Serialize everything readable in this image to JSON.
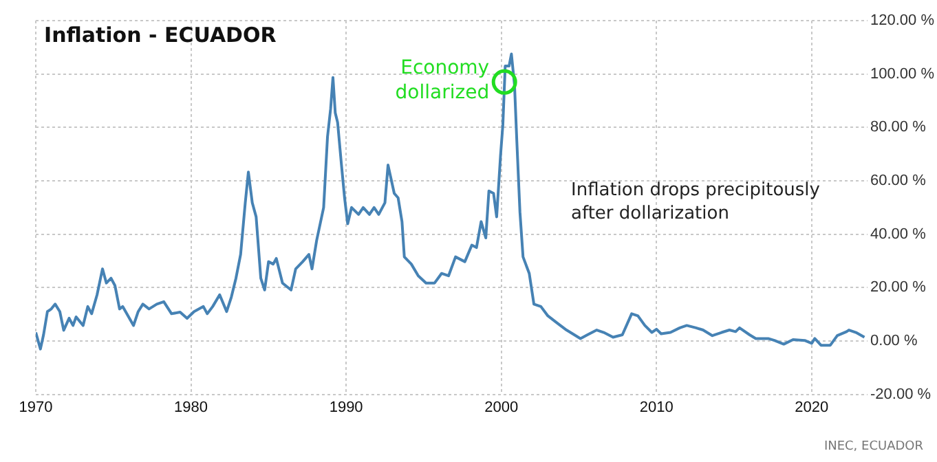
{
  "chart_data": {
    "type": "line",
    "title": "Inflation - ECUADOR",
    "x": [
      1970.0,
      1970.3,
      1970.5,
      1970.75,
      1971.0,
      1971.25,
      1971.55,
      1971.8,
      1972.15,
      1972.4,
      1972.6,
      1973.05,
      1973.35,
      1973.6,
      1973.95,
      1974.3,
      1974.55,
      1974.85,
      1975.1,
      1975.4,
      1975.6,
      1976.3,
      1976.6,
      1976.9,
      1977.3,
      1977.8,
      1978.25,
      1978.75,
      1979.3,
      1979.75,
      1980.2,
      1980.8,
      1981.05,
      1981.4,
      1981.85,
      1982.3,
      1982.6,
      1982.9,
      1983.2,
      1983.5,
      1983.7,
      1983.95,
      1984.2,
      1984.5,
      1984.75,
      1985.0,
      1985.3,
      1985.5,
      1985.9,
      1986.45,
      1986.75,
      1987.2,
      1987.6,
      1987.8,
      1988.1,
      1988.55,
      1988.8,
      1989.0,
      1989.15,
      1989.3,
      1989.45,
      1989.7,
      1989.9,
      1990.1,
      1990.35,
      1990.8,
      1991.1,
      1991.5,
      1991.8,
      1992.1,
      1992.5,
      1992.7,
      1993.1,
      1993.35,
      1993.6,
      1993.75,
      1994.2,
      1994.65,
      1995.15,
      1995.7,
      1996.15,
      1996.6,
      1997.05,
      1997.65,
      1998.1,
      1998.4,
      1998.7,
      1999.0,
      1999.2,
      1999.5,
      1999.7,
      1999.95,
      2000.1,
      2000.25,
      2000.5,
      2000.65,
      2000.85,
      2001.0,
      2001.2,
      2001.4,
      2001.8,
      2002.1,
      2002.55,
      2003.0,
      2003.6,
      2004.2,
      2005.1,
      2005.55,
      2006.15,
      2006.6,
      2007.2,
      2007.8,
      2008.4,
      2008.8,
      2009.25,
      2009.7,
      2010.0,
      2010.3,
      2010.9,
      2011.5,
      2011.95,
      2012.55,
      2013.0,
      2013.6,
      2014.2,
      2014.7,
      2015.1,
      2015.35,
      2016.0,
      2016.4,
      2017.2,
      2017.6,
      2018.2,
      2018.8,
      2019.55,
      2020.0,
      2020.2,
      2020.6,
      2021.2,
      2021.65,
      2022.25,
      2022.4,
      2022.85,
      2023.4
    ],
    "values": [
      3.2,
      -3,
      2.3,
      11,
      12,
      13.8,
      11,
      4,
      8.5,
      5.8,
      9,
      5.8,
      12.9,
      10.2,
      17.3,
      27,
      21.7,
      23.5,
      20.8,
      12,
      12.9,
      5.8,
      11,
      13.8,
      12,
      13.8,
      14.7,
      10.2,
      10.8,
      8.5,
      11,
      12.9,
      10.2,
      12.9,
      17.3,
      11,
      16.4,
      23.5,
      32.4,
      51.8,
      63.3,
      51.8,
      46.5,
      23.5,
      19.1,
      29.7,
      28.8,
      30.9,
      21.7,
      19.1,
      27,
      29.7,
      32.4,
      27,
      37.7,
      50,
      76.5,
      87,
      98.7,
      85.4,
      81.9,
      65.9,
      53.6,
      43.9,
      50,
      47.4,
      50,
      47.4,
      50,
      47.4,
      51.8,
      65.9,
      55.3,
      53.6,
      44.7,
      31.5,
      28.8,
      24.4,
      21.7,
      21.7,
      25.3,
      24.4,
      31.5,
      29.7,
      35.9,
      35,
      44.7,
      38.6,
      56.2,
      55.3,
      46.5,
      69.5,
      81,
      103,
      103,
      107.5,
      96,
      74.8,
      48.3,
      31.5,
      25.3,
      13.8,
      12.9,
      9.4,
      6.7,
      4.1,
      0.9,
      2.3,
      4.1,
      3.2,
      1.4,
      2.3,
      10.2,
      9.4,
      5.8,
      3.2,
      4.4,
      2.7,
      3.2,
      4.9,
      5.8,
      4.9,
      4.1,
      2,
      3.2,
      4.1,
      3.5,
      4.9,
      2.3,
      0.9,
      0.9,
      0.2,
      -1.2,
      0.5,
      0.2,
      -0.9,
      0.9,
      -1.6,
      -1.6,
      2,
      3.5,
      4.1,
      3.2,
      1.4
    ],
    "color": "#4682b4",
    "xlim": [
      1970,
      2023.6
    ],
    "xticks": [
      1970,
      1980,
      1990,
      2000,
      2010,
      2020
    ],
    "ylim": [
      -20,
      120
    ],
    "yticks": [
      {
        "value": -20,
        "label": "-20.00 %"
      },
      {
        "value": 0,
        "label": "0.00 %"
      },
      {
        "value": 20,
        "label": "20.00 %"
      },
      {
        "value": 40,
        "label": "40.00 %"
      },
      {
        "value": 60,
        "label": "60.00 %"
      },
      {
        "value": 80,
        "label": "80.00 %"
      },
      {
        "value": 100,
        "label": "100.00 %"
      },
      {
        "value": 120,
        "label": "120.00 %"
      }
    ],
    "grid": true,
    "legend": false,
    "annotations": [
      {
        "text": "Economy\ndollarized",
        "x": 2000.2,
        "y": 97
      },
      "Inflation drops precipitously\nafter dollarization",
      "INEC, ECUADOR"
    ]
  }
}
